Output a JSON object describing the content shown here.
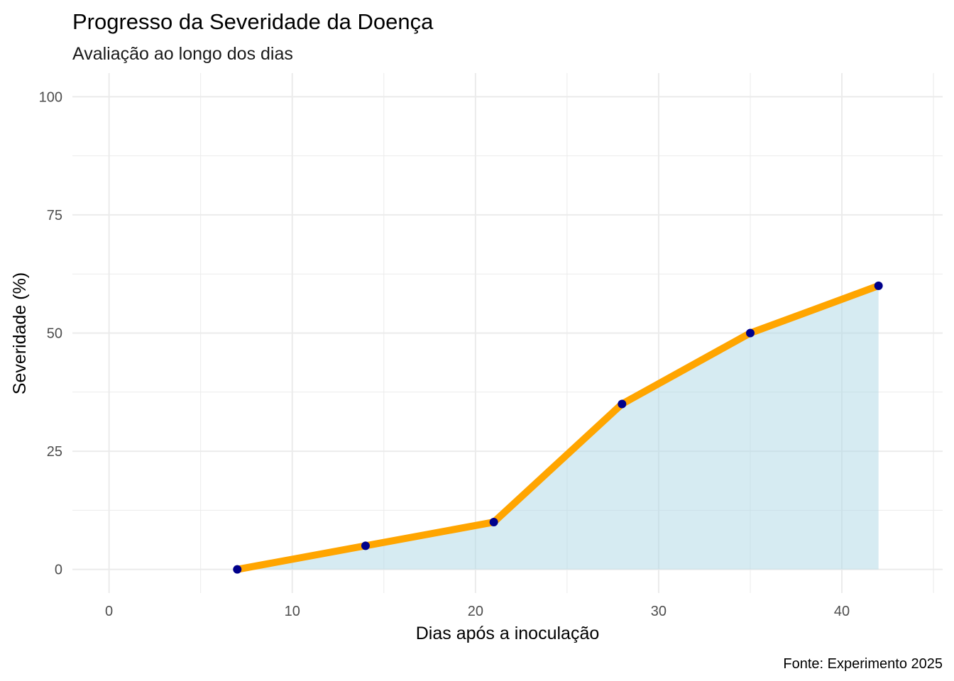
{
  "chart_data": {
    "type": "area",
    "title": "Progresso da Severidade da Doença",
    "subtitle": "Avaliação ao longo dos dias",
    "xlabel": "Dias após a inoculação",
    "ylabel": "Severidade (%)",
    "caption": "Fonte: Experimento 2025",
    "x": [
      7,
      14,
      21,
      28,
      35,
      42
    ],
    "y": [
      0,
      5,
      10,
      35,
      50,
      60
    ],
    "xlim": [
      -2,
      45.5
    ],
    "ylim": [
      -5,
      105
    ],
    "x_ticks": [
      0,
      10,
      20,
      30,
      40
    ],
    "x_tick_labels": [
      "0",
      "10",
      "20",
      "30",
      "40"
    ],
    "x_minor_ticks": [
      5,
      15,
      25,
      35,
      45
    ],
    "y_ticks": [
      0,
      25,
      50,
      75,
      100
    ],
    "y_tick_labels": [
      "0",
      "25",
      "50",
      "75",
      "100"
    ],
    "y_minor_ticks": [
      12.5,
      37.5,
      62.5,
      87.5
    ],
    "grid": true,
    "colors": {
      "line": "#FFA500",
      "point": "#00008B",
      "area_fill": "#ADD8E6",
      "grid": "#ebebeb"
    }
  }
}
